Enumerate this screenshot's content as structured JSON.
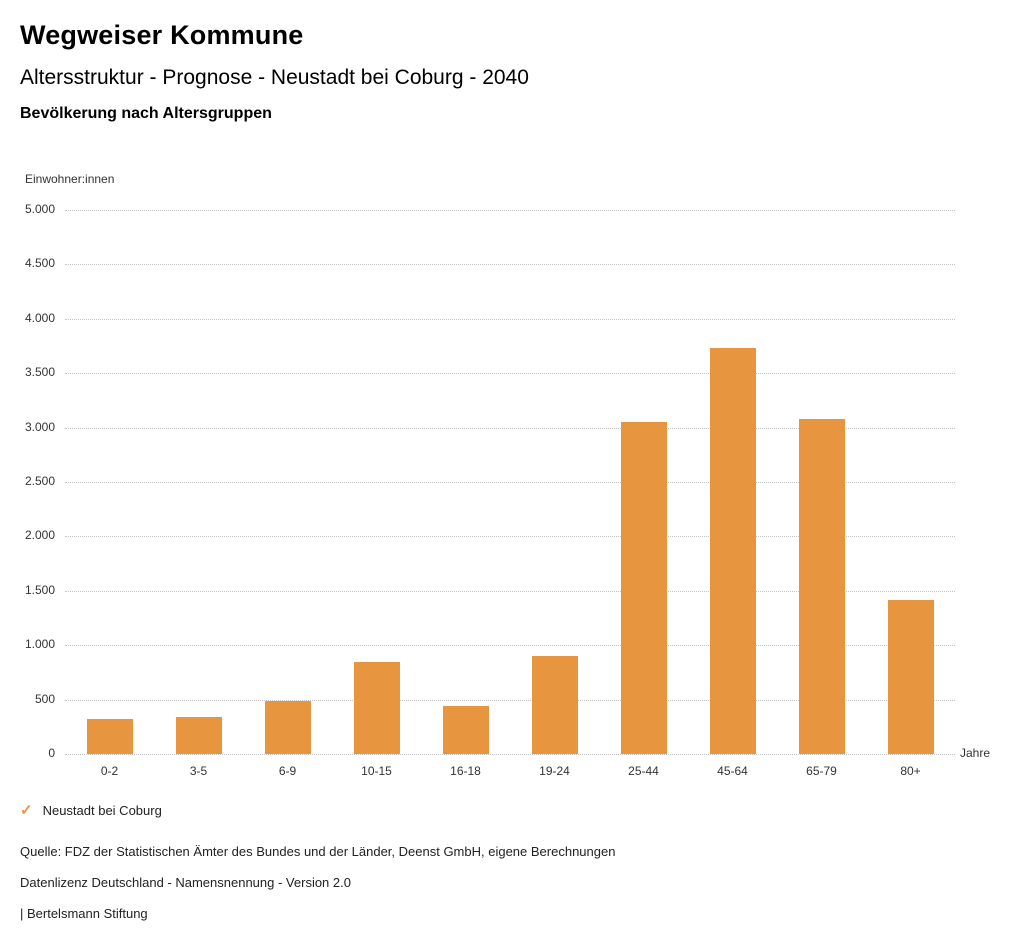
{
  "header": {
    "title": "Wegweiser Kommune",
    "subtitle": "Altersstruktur - Prognose - Neustadt bei Coburg - 2040",
    "section": "Bevölkerung nach Altersgruppen"
  },
  "chart_data": {
    "type": "bar",
    "title": "Bevölkerung nach Altersgruppen",
    "categories": [
      "0-2",
      "3-5",
      "6-9",
      "10-15",
      "16-18",
      "19-24",
      "25-44",
      "45-64",
      "65-79",
      "80+"
    ],
    "values": [
      320,
      340,
      490,
      850,
      440,
      900,
      3050,
      3730,
      3080,
      1420
    ],
    "series_name": "Neustadt bei Coburg",
    "ylabel": "Einwohner:innen",
    "xlabel": "Jahre",
    "ylim": [
      0,
      5000
    ],
    "ytick_step": 500,
    "grid": "dotted",
    "legend_position": "bottom-left",
    "bar_color": "#E8953F"
  },
  "legend": {
    "label": "Neustadt bei Coburg",
    "check_color": "#E8953F"
  },
  "footer": {
    "source": "Quelle: FDZ der Statistischen Ämter des Bundes und der Länder, Deenst GmbH, eigene Berechnungen",
    "license": "Datenlizenz Deutschland - Namensnennung - Version 2.0",
    "brand": "| Bertelsmann Stiftung"
  }
}
